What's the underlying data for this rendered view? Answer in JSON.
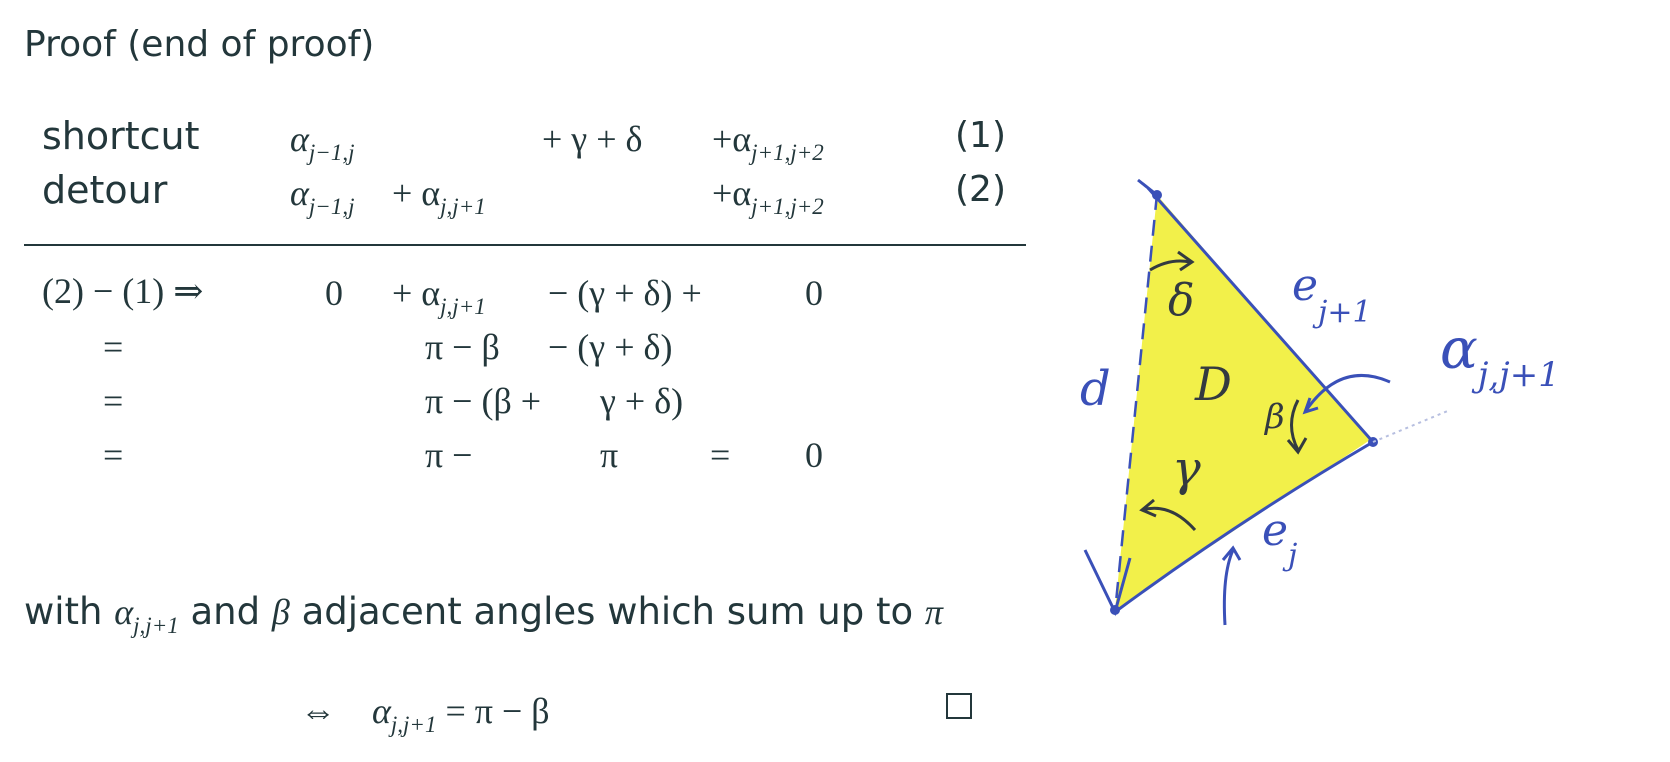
{
  "title": "Proof (end of proof)",
  "table": {
    "shortcut": {
      "label": "shortcut",
      "c1": "α",
      "c1_sub": "j−1,j",
      "c3": "+ γ + δ",
      "c4": "+α",
      "c4_sub": "j+1,j+2",
      "eqno": "(1)"
    },
    "detour": {
      "label": "detour",
      "c1": "α",
      "c1_sub": "j−1,j",
      "c2": "+ α",
      "c2_sub": "j,j+1",
      "c4": "+α",
      "c4_sub": "j+1,j+2",
      "eqno": "(2)"
    }
  },
  "derivation": {
    "lhs": "(2) − (1) ⇒",
    "eq": "=",
    "r1": {
      "a": "0",
      "b": "+ α",
      "b_sub": "j,j+1",
      "c": "− (γ + δ) +",
      "d": "0"
    },
    "r2": {
      "b": "π − β",
      "c": "− (γ + δ)"
    },
    "r3": {
      "b": "π − (β +",
      "c": "γ + δ)"
    },
    "r4": {
      "b": "π −",
      "c": "π",
      "eq2": "=",
      "d": "0"
    }
  },
  "note": {
    "pre": "with ",
    "alpha": "α",
    "alpha_sub": "j,j+1",
    "mid": " and ",
    "beta": "β",
    "post": " adjacent angles which sum up to ",
    "pi": "π"
  },
  "conclusion": {
    "iff": "⇔",
    "alpha": "α",
    "alpha_sub": "j,j+1",
    "rhs": " = π − β"
  },
  "figure": {
    "fill_color": "#f2f04a",
    "ink_color": "#3a50b8",
    "labels": {
      "e_next": "e",
      "e_next_sub": "j+1",
      "alpha": "α",
      "alpha_sub": "j,j+1",
      "delta": "δ",
      "D": "D",
      "beta": "β",
      "gamma": "γ",
      "d": "d",
      "e_j": "e",
      "e_j_sub": "j"
    }
  }
}
